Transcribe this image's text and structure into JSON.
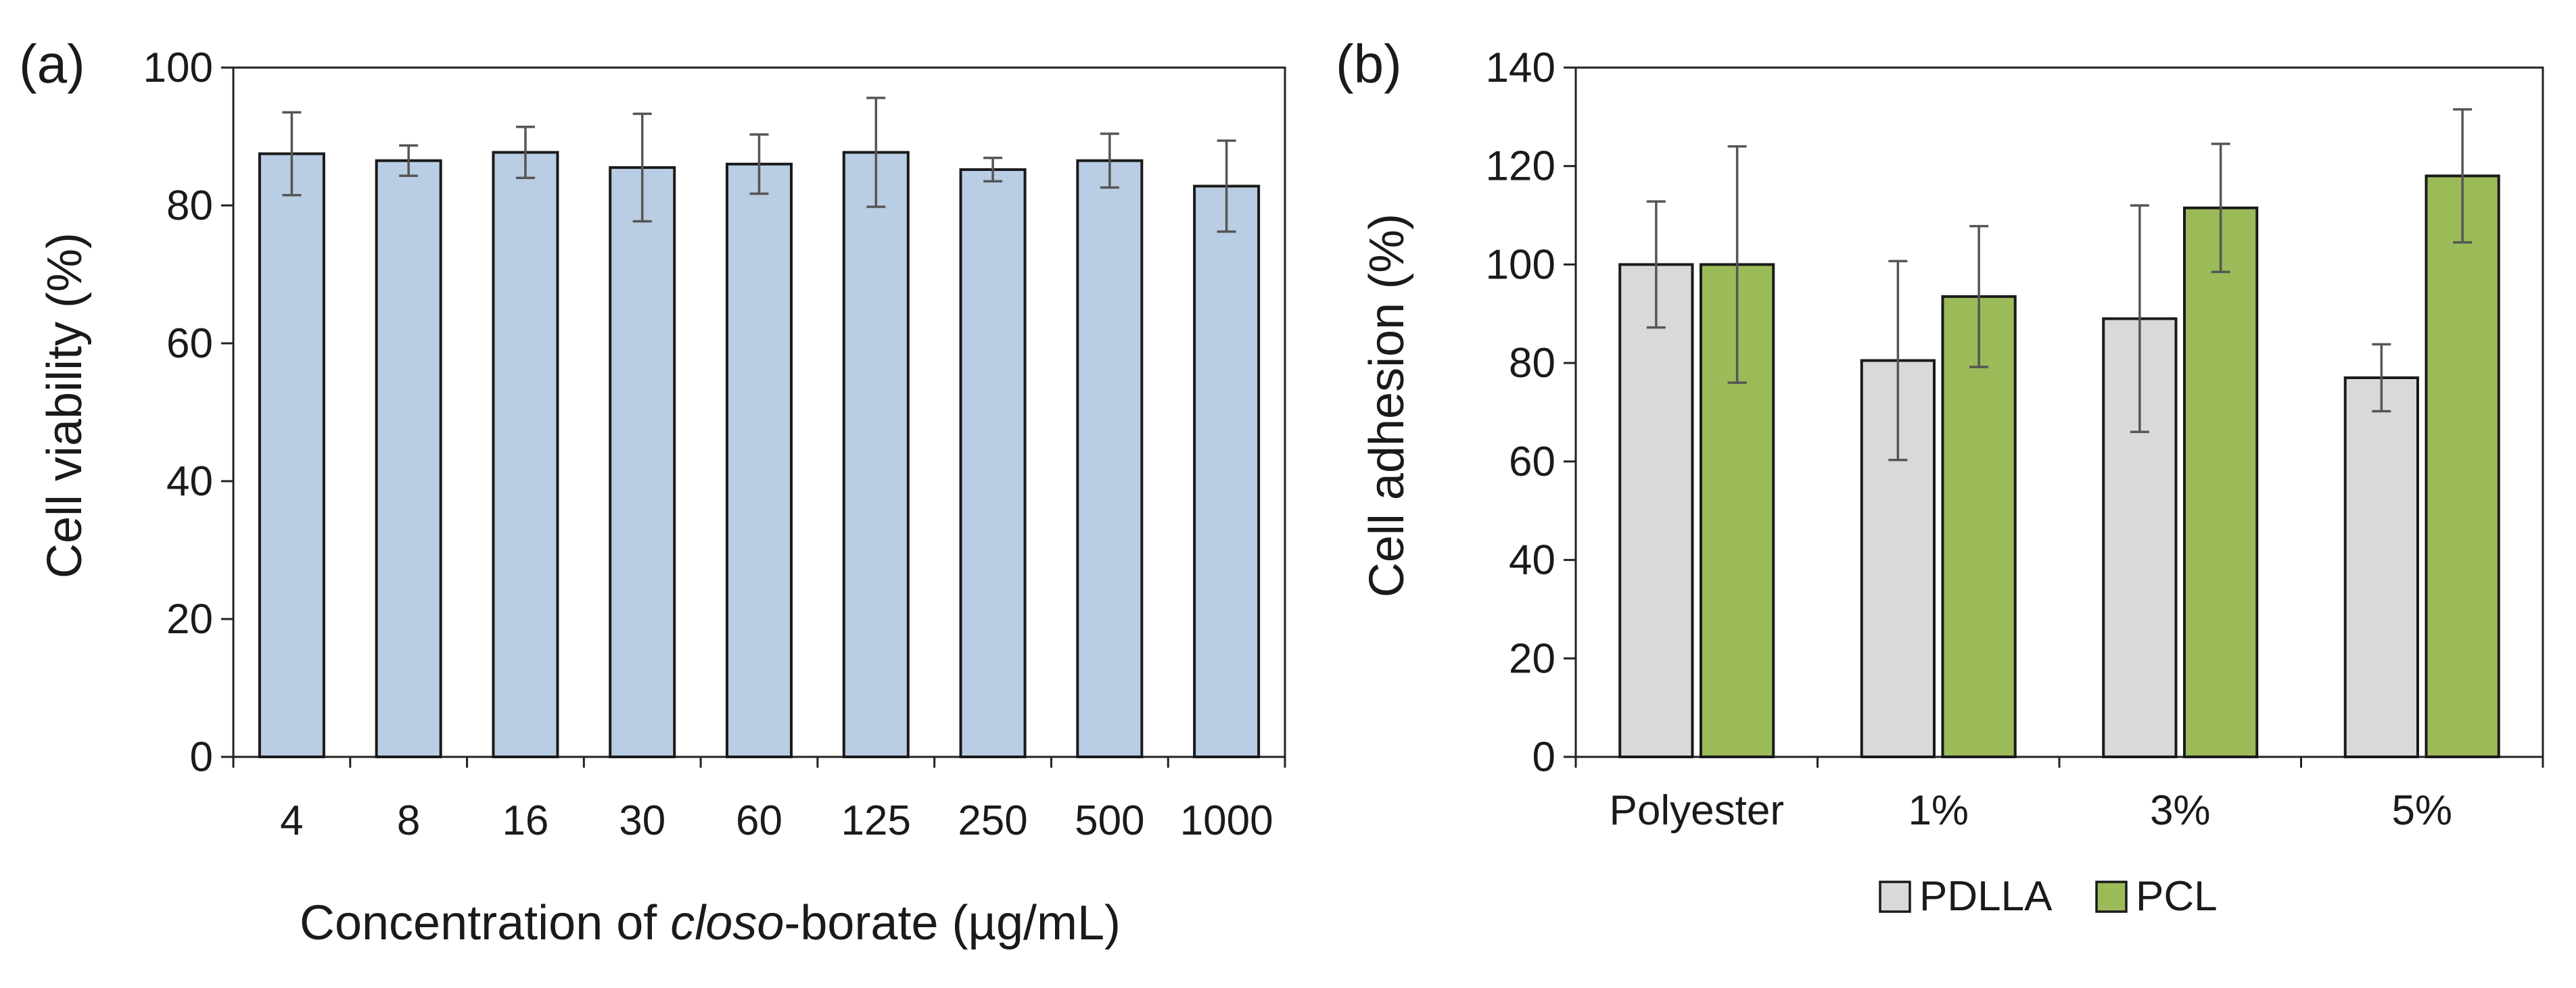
{
  "chart_data": [
    {
      "panel_label": "(a)",
      "type": "bar",
      "xlabel_pre": "Concentration of ",
      "xlabel_italic": "closo",
      "xlabel_post": "-borate (µg/mL)",
      "ylabel": "Cell viability (%)",
      "ylim": [
        0,
        100
      ],
      "yticks": [
        "0",
        "20",
        "40",
        "60",
        "80",
        "100"
      ],
      "categories": [
        "4",
        "8",
        "16",
        "30",
        "60",
        "125",
        "250",
        "500",
        "1000"
      ],
      "series": [
        {
          "name": "Cell viability",
          "color": "#b9cde4",
          "values": [
            87.5,
            86.5,
            87.7,
            85.5,
            86.0,
            87.7,
            85.2,
            86.5,
            82.8
          ],
          "errors": [
            6.0,
            2.2,
            3.7,
            7.8,
            4.3,
            7.9,
            1.7,
            3.9,
            6.6
          ]
        }
      ]
    },
    {
      "panel_label": "(b)",
      "type": "bar",
      "xlabel": "",
      "ylabel": "Cell adhesion  (%)",
      "ylim": [
        0,
        140
      ],
      "yticks": [
        "0",
        "20",
        "40",
        "60",
        "80",
        "100",
        "120",
        "140"
      ],
      "categories": [
        "Polyester",
        "1%",
        "3%",
        "5%"
      ],
      "legend_position": "bottom",
      "series": [
        {
          "name": "PDLLA",
          "color": "#d9d9d9",
          "values": [
            100,
            80.5,
            89,
            77
          ],
          "errors": [
            12.8,
            20.2,
            23.0,
            6.8
          ]
        },
        {
          "name": "PCL",
          "color": "#9bbb59",
          "values": [
            100,
            93.5,
            111.5,
            118
          ],
          "errors": [
            24.0,
            14.3,
            13.0,
            13.5
          ]
        }
      ]
    }
  ]
}
